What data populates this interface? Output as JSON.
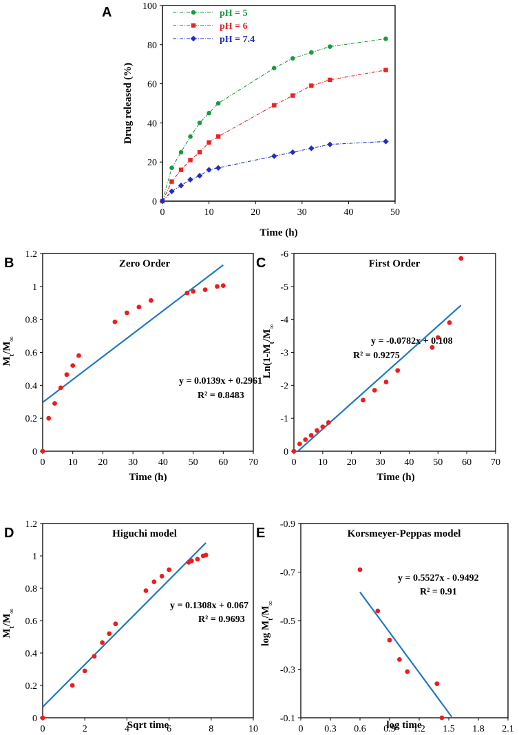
{
  "chart_data": [
    {
      "panel": "A",
      "type": "line",
      "xlabel": "Time (h)",
      "ylabel": "Drug released (%)",
      "xlim": [
        0,
        50
      ],
      "ylim": [
        0,
        100
      ],
      "xticks": [
        "0",
        "10",
        "20",
        "30",
        "40",
        "50"
      ],
      "yticks": [
        "0",
        "20",
        "40",
        "60",
        "80",
        "100"
      ],
      "legend_position": "top-left",
      "series": [
        {
          "name": "pH = 5",
          "color": "#1a9a3c",
          "marker": "circle",
          "x": [
            0,
            2,
            4,
            6,
            8,
            10,
            12,
            24,
            28,
            32,
            36,
            48
          ],
          "y": [
            0,
            17,
            25,
            33,
            40,
            45,
            50,
            68,
            73,
            76,
            79,
            83
          ]
        },
        {
          "name": "pH = 6",
          "color": "#ee2222",
          "marker": "square",
          "x": [
            0,
            2,
            4,
            6,
            8,
            10,
            12,
            24,
            28,
            32,
            36,
            48
          ],
          "y": [
            0,
            10,
            16,
            21,
            25,
            30,
            33,
            49,
            54,
            59,
            62,
            67
          ]
        },
        {
          "name": "pH = 7.4",
          "color": "#1f2fbf",
          "marker": "diamond",
          "x": [
            0,
            2,
            4,
            6,
            8,
            10,
            12,
            24,
            28,
            32,
            36,
            48
          ],
          "y": [
            0,
            5,
            8,
            11,
            13,
            16,
            17,
            23,
            25,
            27,
            29,
            30.5
          ]
        }
      ]
    },
    {
      "panel": "B",
      "type": "scatter",
      "title": "Zero Order",
      "xlabel": "Time (h)",
      "ylabel_main": "M",
      "ylabel_sub1": "t",
      "ylabel_mid": "/M",
      "ylabel_sub2": "∞",
      "xlim": [
        0,
        70
      ],
      "ylim": [
        0,
        1.2
      ],
      "xticks": [
        "0",
        "10",
        "20",
        "30",
        "40",
        "50",
        "60",
        "70"
      ],
      "yticks": [
        "0",
        "0.2",
        "0.4",
        "0.6",
        "0.8",
        "1",
        "1.2"
      ],
      "points": {
        "x": [
          0,
          2,
          4,
          6,
          8,
          10,
          12,
          24,
          28,
          32,
          36,
          48,
          50,
          54,
          58,
          60
        ],
        "y": [
          0,
          0.2,
          0.29,
          0.385,
          0.465,
          0.52,
          0.58,
          0.785,
          0.84,
          0.875,
          0.915,
          0.96,
          0.97,
          0.98,
          1.0,
          1.005
        ]
      },
      "fit": {
        "slope": 0.0139,
        "intercept": 0.2961,
        "x_range": [
          0,
          60
        ]
      },
      "equation": "y = 0.0139x + 0.2961",
      "r2": "R² = 0.8483"
    },
    {
      "panel": "C",
      "type": "scatter",
      "title": "First Order",
      "xlabel": "Time (h)",
      "ylabel_main": "Ln(1-M",
      "ylabel_sub1": "t",
      "ylabel_mid": "/M",
      "ylabel_sub2": "∞",
      "xlim": [
        0,
        70
      ],
      "ylim": [
        0,
        -6
      ],
      "xticks": [
        "0",
        "10",
        "20",
        "30",
        "40",
        "50",
        "60",
        "70"
      ],
      "yticks": [
        "0",
        "-1",
        "-2",
        "-3",
        "-4",
        "-5",
        "-6"
      ],
      "points": {
        "x": [
          0,
          2,
          4,
          6,
          8,
          10,
          12,
          24,
          28,
          32,
          36,
          48,
          50,
          54,
          58
        ],
        "y": [
          0,
          -0.22,
          -0.35,
          -0.48,
          -0.63,
          -0.74,
          -0.87,
          -1.55,
          -1.85,
          -2.1,
          -2.45,
          -3.15,
          -3.45,
          -3.9,
          -5.85
        ]
      },
      "fit": {
        "slope": -0.0782,
        "intercept": 0.108,
        "x_range": [
          0,
          58
        ]
      },
      "equation": "y = -0.0782x + 0.108",
      "r2": "R² = 0.9275"
    },
    {
      "panel": "D",
      "type": "scatter",
      "title": "Higuchi model",
      "xlabel": "Sqrt time",
      "ylabel_main": "M",
      "ylabel_sub1": "t",
      "ylabel_mid": "/M",
      "ylabel_sub2": "∞",
      "xlim": [
        0,
        10
      ],
      "ylim": [
        0,
        1.2
      ],
      "xticks": [
        "0",
        "2",
        "4",
        "6",
        "8",
        "10"
      ],
      "yticks": [
        "0",
        "0.2",
        "0.4",
        "0.6",
        "0.8",
        "1",
        "1.2"
      ],
      "points": {
        "x": [
          0,
          1.41,
          2.0,
          2.45,
          2.83,
          3.16,
          3.46,
          4.9,
          5.29,
          5.66,
          6.0,
          6.93,
          7.07,
          7.35,
          7.62,
          7.75
        ],
        "y": [
          0,
          0.2,
          0.29,
          0.38,
          0.465,
          0.52,
          0.58,
          0.785,
          0.84,
          0.875,
          0.915,
          0.96,
          0.97,
          0.98,
          1.0,
          1.005
        ]
      },
      "fit": {
        "slope": 0.1308,
        "intercept": 0.067,
        "x_range": [
          0,
          7.75
        ]
      },
      "equation": "y = 0.1308x + 0.067",
      "r2": "R² = 0.9693"
    },
    {
      "panel": "E",
      "type": "scatter",
      "title": "Korsmeyer-Peppas model",
      "xlabel": "log time",
      "ylabel_main": "log M",
      "ylabel_sub1": "t",
      "ylabel_mid": "/M",
      "ylabel_sub2": "∞",
      "xlim": [
        0,
        2.1
      ],
      "ylim": [
        -0.1,
        -0.9
      ],
      "xticks": [
        "0",
        "0.3",
        "0.6",
        "0.9",
        "1.2",
        "1.5",
        "1.8",
        "2.1"
      ],
      "yticks": [
        "-0.1",
        "-0.3",
        "-0.5",
        "-0.7",
        "-0.9"
      ],
      "points": {
        "x": [
          0.6,
          0.78,
          0.9,
          1.0,
          1.08,
          1.38,
          1.43
        ],
        "y": [
          -0.71,
          -0.54,
          -0.42,
          -0.34,
          -0.29,
          -0.24,
          -0.1
        ]
      },
      "fit": {
        "slope": 0.5527,
        "intercept": -0.9492,
        "x_range": [
          0.6,
          1.53
        ]
      },
      "equation": "y = 0.5527x - 0.9492",
      "r2": "R² = 0.91"
    }
  ]
}
